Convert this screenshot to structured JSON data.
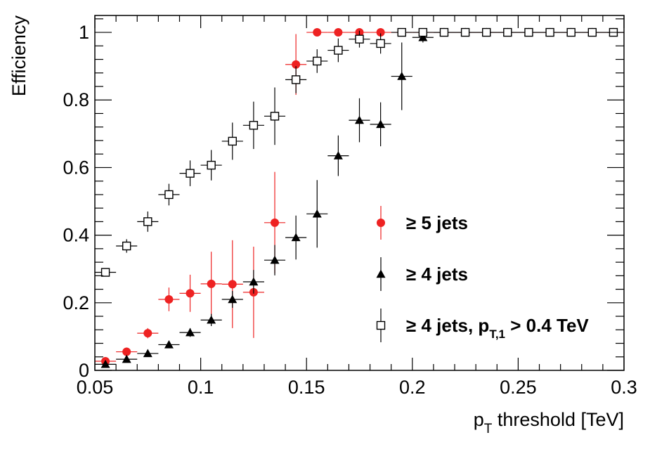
{
  "chart_data": {
    "type": "scatter",
    "title": "",
    "xlabel": "p_T threshold [TeV]",
    "xlabel_parts": {
      "main": "p",
      "sub": "T",
      "rest": " threshold [TeV]"
    },
    "ylabel": "Efficiency",
    "xlim": [
      0.05,
      0.3
    ],
    "ylim": [
      0,
      1.05
    ],
    "x_ticks": [
      {
        "value": 0.05,
        "label": "0.05"
      },
      {
        "value": 0.1,
        "label": "0.1"
      },
      {
        "value": 0.15,
        "label": "0.15"
      },
      {
        "value": 0.2,
        "label": "0.2"
      },
      {
        "value": 0.25,
        "label": "0.25"
      },
      {
        "value": 0.3,
        "label": "0.3"
      }
    ],
    "y_ticks": [
      {
        "value": 0,
        "label": "0"
      },
      {
        "value": 0.2,
        "label": "0.2"
      },
      {
        "value": 0.4,
        "label": "0.4"
      },
      {
        "value": 0.6,
        "label": "0.6"
      },
      {
        "value": 0.8,
        "label": "0.8"
      },
      {
        "value": 1,
        "label": "1"
      }
    ],
    "grid": false,
    "legend_position": "center-right",
    "bin_half_width": 0.005,
    "series": [
      {
        "name": "≥ 5 jets",
        "legend": {
          "main": "≥ 5 jets"
        },
        "marker": "circle",
        "color": "#ee2222",
        "x": [
          0.055,
          0.065,
          0.075,
          0.085,
          0.095,
          0.105,
          0.115,
          0.125,
          0.135,
          0.145,
          0.155,
          0.165,
          0.175,
          0.185,
          0.195,
          0.205,
          0.215,
          0.225,
          0.235,
          0.245,
          0.255,
          0.265,
          0.275,
          0.285,
          0.295
        ],
        "y": [
          0.027,
          0.055,
          0.11,
          0.21,
          0.228,
          0.256,
          0.255,
          0.231,
          0.437,
          0.905,
          1.0,
          1.0,
          1.0,
          1.0,
          1.0,
          1.0,
          1.0,
          1.0,
          1.0,
          1.0,
          1.0,
          1.0,
          1.0,
          1.0,
          1.0
        ],
        "err": [
          0.006,
          0.01,
          0.015,
          0.035,
          0.055,
          0.095,
          0.13,
          0.135,
          0.15,
          0.09,
          0,
          0,
          0,
          0,
          0,
          0,
          0,
          0,
          0,
          0,
          0,
          0,
          0,
          0,
          0
        ]
      },
      {
        "name": "≥ 4 jets",
        "legend": {
          "main": "≥ 4 jets"
        },
        "marker": "triangle",
        "color": "#000000",
        "x": [
          0.055,
          0.065,
          0.075,
          0.085,
          0.095,
          0.105,
          0.115,
          0.125,
          0.135,
          0.145,
          0.155,
          0.165,
          0.175,
          0.185,
          0.195,
          0.205,
          0.215,
          0.225,
          0.235,
          0.245,
          0.255,
          0.265,
          0.275,
          0.285,
          0.295
        ],
        "y": [
          0.018,
          0.033,
          0.05,
          0.076,
          0.112,
          0.149,
          0.21,
          0.262,
          0.326,
          0.393,
          0.463,
          0.635,
          0.74,
          0.728,
          0.87,
          0.985,
          1.0,
          1.0,
          1.0,
          1.0,
          1.0,
          1.0,
          1.0,
          1.0,
          1.0
        ],
        "err": [
          0.004,
          0.006,
          0.008,
          0.01,
          0.013,
          0.018,
          0.025,
          0.035,
          0.045,
          0.065,
          0.1,
          0.06,
          0.065,
          0.065,
          0.1,
          0.015,
          0,
          0,
          0,
          0,
          0,
          0,
          0,
          0,
          0
        ]
      },
      {
        "name": "≥ 4 jets, p_T,1 > 0.4 TeV",
        "legend": {
          "main": "≥ 4 jets, p",
          "sub": "T,1",
          "rest": " > 0.4 TeV"
        },
        "marker": "open-square",
        "color": "#000000",
        "x": [
          0.055,
          0.065,
          0.075,
          0.085,
          0.095,
          0.105,
          0.115,
          0.125,
          0.135,
          0.145,
          0.155,
          0.165,
          0.175,
          0.185,
          0.195,
          0.205,
          0.215,
          0.225,
          0.235,
          0.245,
          0.255,
          0.265,
          0.275,
          0.285,
          0.295
        ],
        "y": [
          0.29,
          0.368,
          0.44,
          0.52,
          0.583,
          0.607,
          0.678,
          0.725,
          0.752,
          0.86,
          0.915,
          0.947,
          0.98,
          0.967,
          1.0,
          1.0,
          1.0,
          1.0,
          1.0,
          1.0,
          1.0,
          1.0,
          1.0,
          1.0,
          1.0
        ],
        "err": [
          0.012,
          0.02,
          0.03,
          0.032,
          0.038,
          0.045,
          0.055,
          0.07,
          0.085,
          0.04,
          0.035,
          0.035,
          0.025,
          0.03,
          0,
          0,
          0,
          0,
          0,
          0,
          0,
          0,
          0,
          0,
          0
        ]
      }
    ]
  }
}
